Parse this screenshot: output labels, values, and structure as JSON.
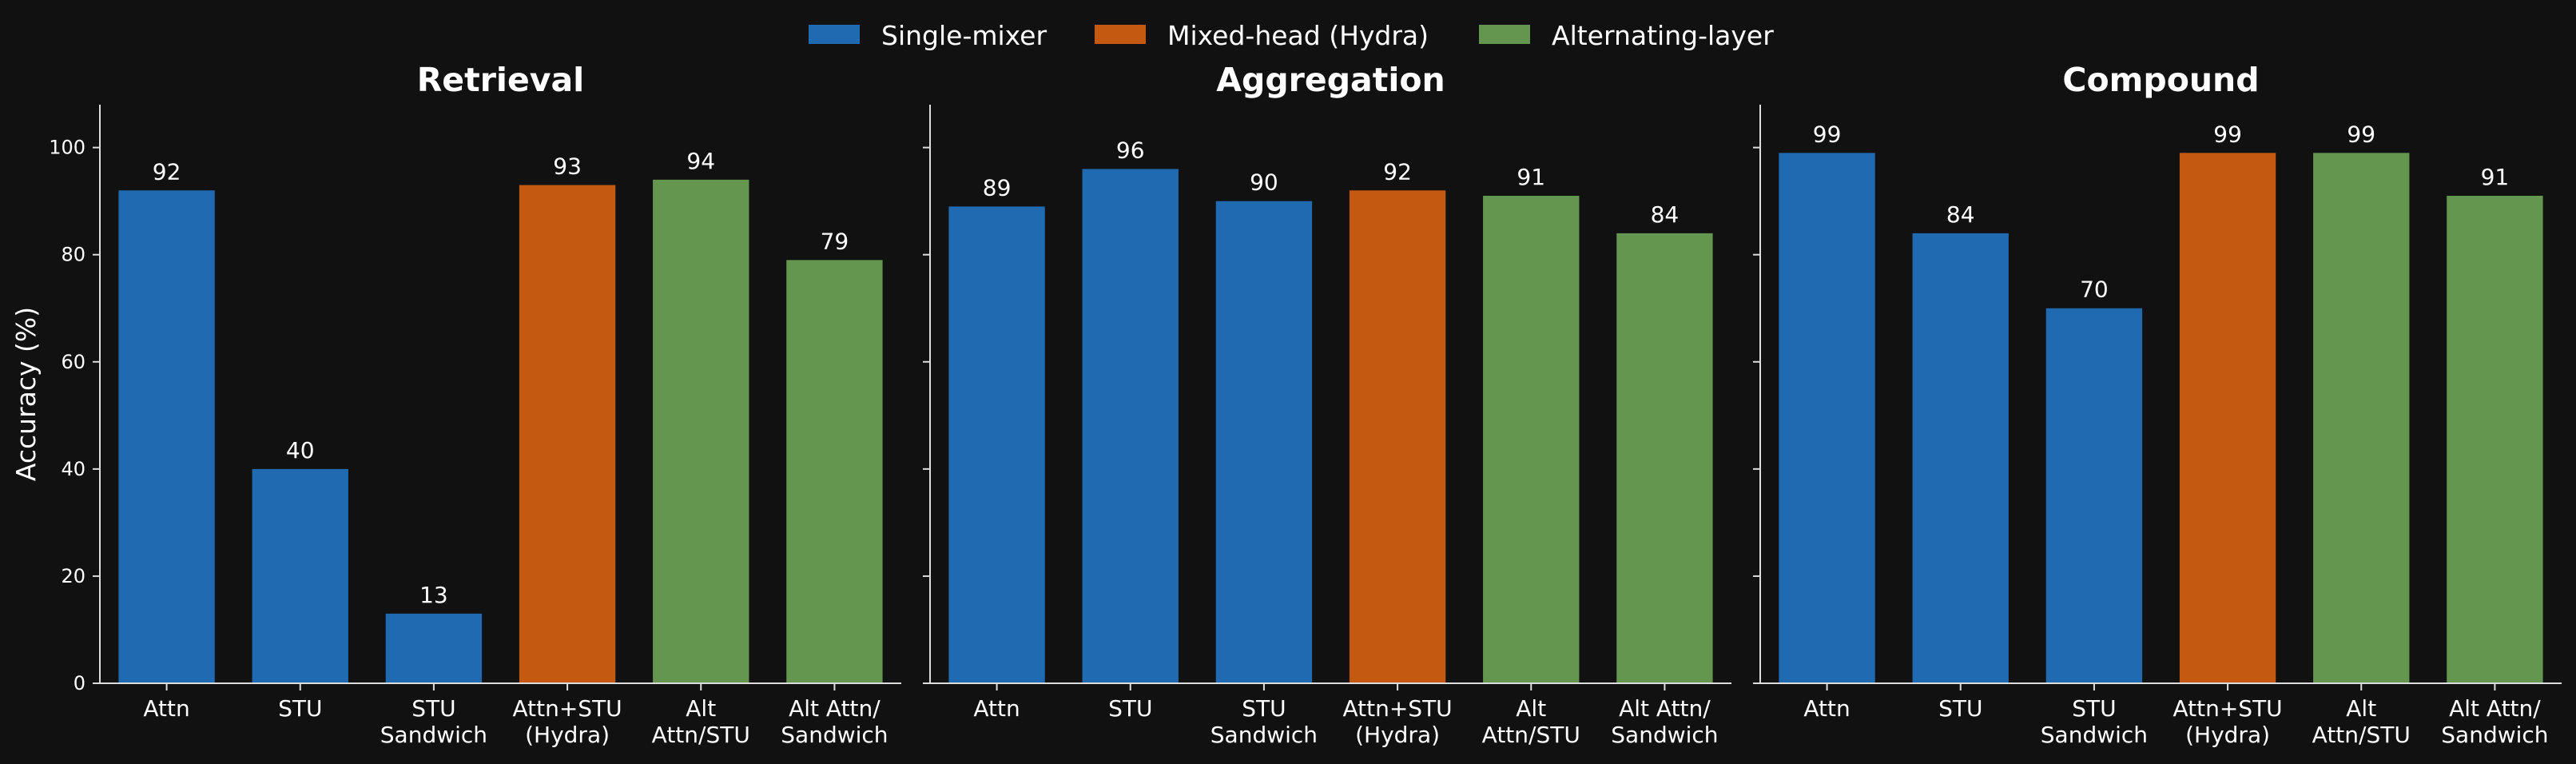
{
  "colors": {
    "background": "#111111",
    "axis": "#dddddd",
    "single_mixer": "#1f6ab0",
    "mixed_head": "#c45a11",
    "alternating_layer": "#64964f"
  },
  "legend": [
    {
      "label": "Single-mixer",
      "color": "#1f6ab0"
    },
    {
      "label": "Mixed-head (Hydra)",
      "color": "#c45a11"
    },
    {
      "label": "Alternating-layer",
      "color": "#64964f"
    }
  ],
  "chart_data": [
    {
      "type": "bar",
      "title": "Retrieval",
      "ylabel": "Accuracy (%)",
      "ylim": [
        0,
        108
      ],
      "yticks": [
        0,
        20,
        40,
        60,
        80,
        100
      ],
      "categories": [
        [
          "Attn"
        ],
        [
          "STU"
        ],
        [
          "STU",
          "Sandwich"
        ],
        [
          "Attn+STU",
          "(Hydra)"
        ],
        [
          "Alt",
          "Attn/STU"
        ],
        [
          "Alt Attn/",
          "Sandwich"
        ]
      ],
      "values": [
        92,
        40,
        13,
        93,
        94,
        79
      ],
      "value_labels": [
        "92",
        "40",
        "13",
        "93",
        "94",
        "79"
      ],
      "groups": [
        "Single-mixer",
        "Single-mixer",
        "Single-mixer",
        "Mixed-head (Hydra)",
        "Alternating-layer",
        "Alternating-layer"
      ]
    },
    {
      "type": "bar",
      "title": "Aggregation",
      "ylabel": "",
      "ylim": [
        0,
        108
      ],
      "yticks": [
        0,
        20,
        40,
        60,
        80,
        100
      ],
      "categories": [
        [
          "Attn"
        ],
        [
          "STU"
        ],
        [
          "STU",
          "Sandwich"
        ],
        [
          "Attn+STU",
          "(Hydra)"
        ],
        [
          "Alt",
          "Attn/STU"
        ],
        [
          "Alt Attn/",
          "Sandwich"
        ]
      ],
      "values": [
        89,
        96,
        90,
        92,
        91,
        84
      ],
      "value_labels": [
        "89",
        "96",
        "90",
        "92",
        "91",
        "84"
      ],
      "groups": [
        "Single-mixer",
        "Single-mixer",
        "Single-mixer",
        "Mixed-head (Hydra)",
        "Alternating-layer",
        "Alternating-layer"
      ]
    },
    {
      "type": "bar",
      "title": "Compound",
      "ylabel": "",
      "ylim": [
        0,
        108
      ],
      "yticks": [
        0,
        20,
        40,
        60,
        80,
        100
      ],
      "categories": [
        [
          "Attn"
        ],
        [
          "STU"
        ],
        [
          "STU",
          "Sandwich"
        ],
        [
          "Attn+STU",
          "(Hydra)"
        ],
        [
          "Alt",
          "Attn/STU"
        ],
        [
          "Alt Attn/",
          "Sandwich"
        ]
      ],
      "values": [
        99,
        84,
        70,
        99,
        99,
        91
      ],
      "value_labels": [
        "99",
        "84",
        "70",
        "99",
        "99",
        "91"
      ],
      "groups": [
        "Single-mixer",
        "Single-mixer",
        "Single-mixer",
        "Mixed-head (Hydra)",
        "Alternating-layer",
        "Alternating-layer"
      ]
    }
  ]
}
